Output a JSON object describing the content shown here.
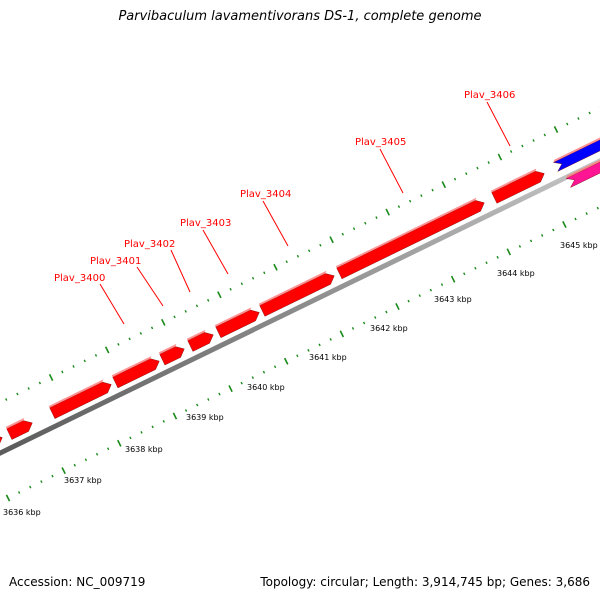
{
  "title": "Parvibaculum lavamentivorans DS-1, complete genome",
  "footer": {
    "accession_label": "Accession:",
    "accession": "NC_009719",
    "topology_label": "Topology:",
    "topology": "circular",
    "length_label": "Length:",
    "length": "3,914,745 bp",
    "genes_label": "Genes:",
    "genes": "3,686"
  },
  "map": {
    "kbp_labels": [
      "3636 kbp",
      "3637 kbp",
      "3638 kbp",
      "3639 kbp",
      "3640 kbp",
      "3641 kbp",
      "3642 kbp",
      "3643 kbp",
      "3644 kbp",
      "3645 kbp"
    ],
    "gene_labels": [
      "Plav_3400",
      "Plav_3401",
      "Plav_3402",
      "Plav_3403",
      "Plav_3404",
      "Plav_3405",
      "Plav_3406"
    ],
    "colors": {
      "forward_gene": "#ff0000",
      "reverse_gene_blue": "#0000ff",
      "reverse_gene_pink": "#ff1493",
      "backbone": "#888888",
      "ticks": "#1a8a1a",
      "gene_label": "#ff0000"
    }
  }
}
